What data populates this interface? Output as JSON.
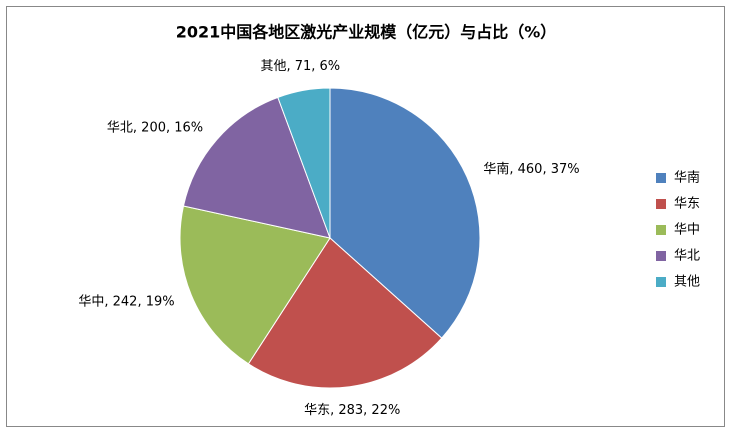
{
  "chart_data": {
    "type": "pie",
    "title": "2021中国各地区激光产业规模（亿元）与占比（%）",
    "categories": [
      "华南",
      "华东",
      "华中",
      "华北",
      "其他"
    ],
    "values": [
      460,
      283,
      242,
      200,
      71
    ],
    "value_labels": [
      "华南, 460, 37%",
      "华东, 283, 22%",
      "华中, 242, 19%",
      "华北, 200, 16%",
      "其他, 71, 6%"
    ],
    "colors": [
      "#4f81bd",
      "#c0504d",
      "#9bbb59",
      "#8064a2",
      "#4bacc6"
    ],
    "legend": "right"
  }
}
